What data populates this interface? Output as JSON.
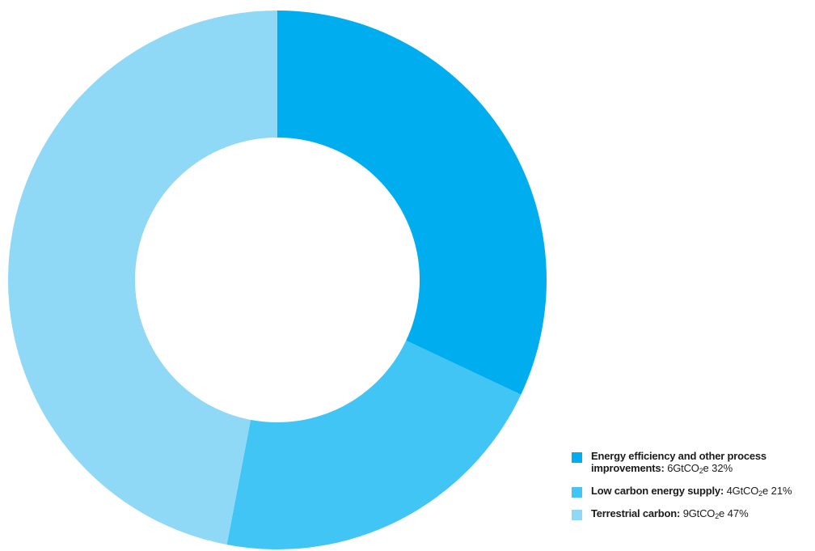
{
  "chart_data": {
    "type": "pie",
    "donut": true,
    "unit": "GtCO₂e",
    "legend_position": "bottom-right",
    "series": [
      {
        "name": "Energy efficiency and other process improvements:",
        "value_label": "6GtCO",
        "value_sub": "2",
        "value_suffix": "e",
        "value": 6,
        "percent": 32,
        "percent_label": "32%",
        "color": "#00aeef"
      },
      {
        "name": "Low carbon energy supply:",
        "value_label": "4GtCO",
        "value_sub": "2",
        "value_suffix": "e",
        "value": 4,
        "percent": 21,
        "percent_label": "21%",
        "color": "#40c5f4"
      },
      {
        "name": "Terrestrial carbon:",
        "value_label": "9GtCO",
        "value_sub": "2",
        "value_suffix": "e",
        "value": 9,
        "percent": 47,
        "percent_label": "47%",
        "color": "#8fd8f6"
      }
    ]
  }
}
